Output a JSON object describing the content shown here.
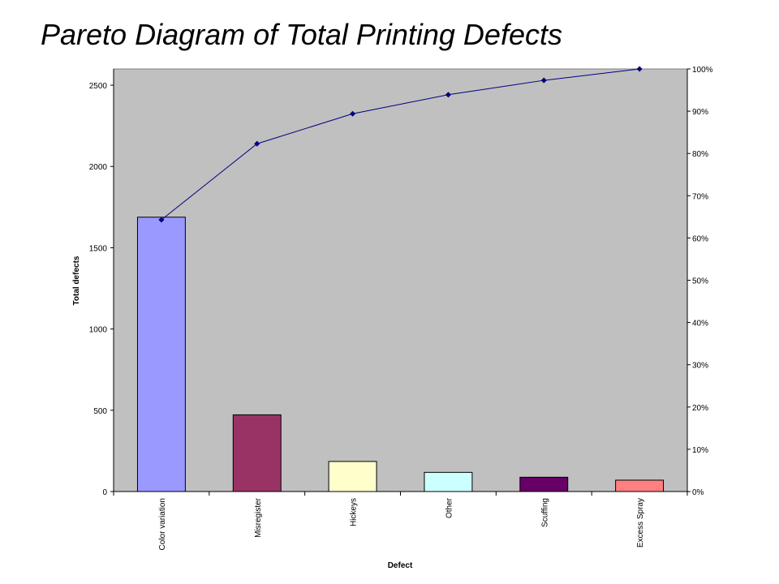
{
  "title": "Pareto Diagram of Total Printing Defects",
  "chart_data": {
    "type": "bar",
    "title": "Pareto Diagram of Total Printing Defects",
    "xlabel": "Defect",
    "ylabel": "Total defects",
    "categories": [
      "Color variation",
      "Misregister",
      "Hickeys",
      "Other",
      "Scuffing",
      "Excess Spray"
    ],
    "series": [
      {
        "type": "bar",
        "axis": "left",
        "values": [
          1688,
          472,
          185,
          118,
          88,
          70
        ],
        "colors": [
          "#9999ff",
          "#993366",
          "#ffffcc",
          "#ccffff",
          "#660066",
          "#ff8080"
        ]
      },
      {
        "type": "line",
        "axis": "right",
        "values": [
          64.3,
          82.3,
          89.4,
          93.9,
          97.3,
          100
        ],
        "color": "#000080"
      }
    ],
    "ylim": [
      0,
      2600
    ],
    "yticks": [
      0,
      500,
      1000,
      1500,
      2000,
      2500
    ],
    "y2lim": [
      0,
      100
    ],
    "y2ticks": [
      "0%",
      "10%",
      "20%",
      "30%",
      "40%",
      "50%",
      "60%",
      "70%",
      "80%",
      "90%",
      "100%"
    ],
    "plot_background": "#c0c0c0",
    "grid": false,
    "legend": "none"
  }
}
